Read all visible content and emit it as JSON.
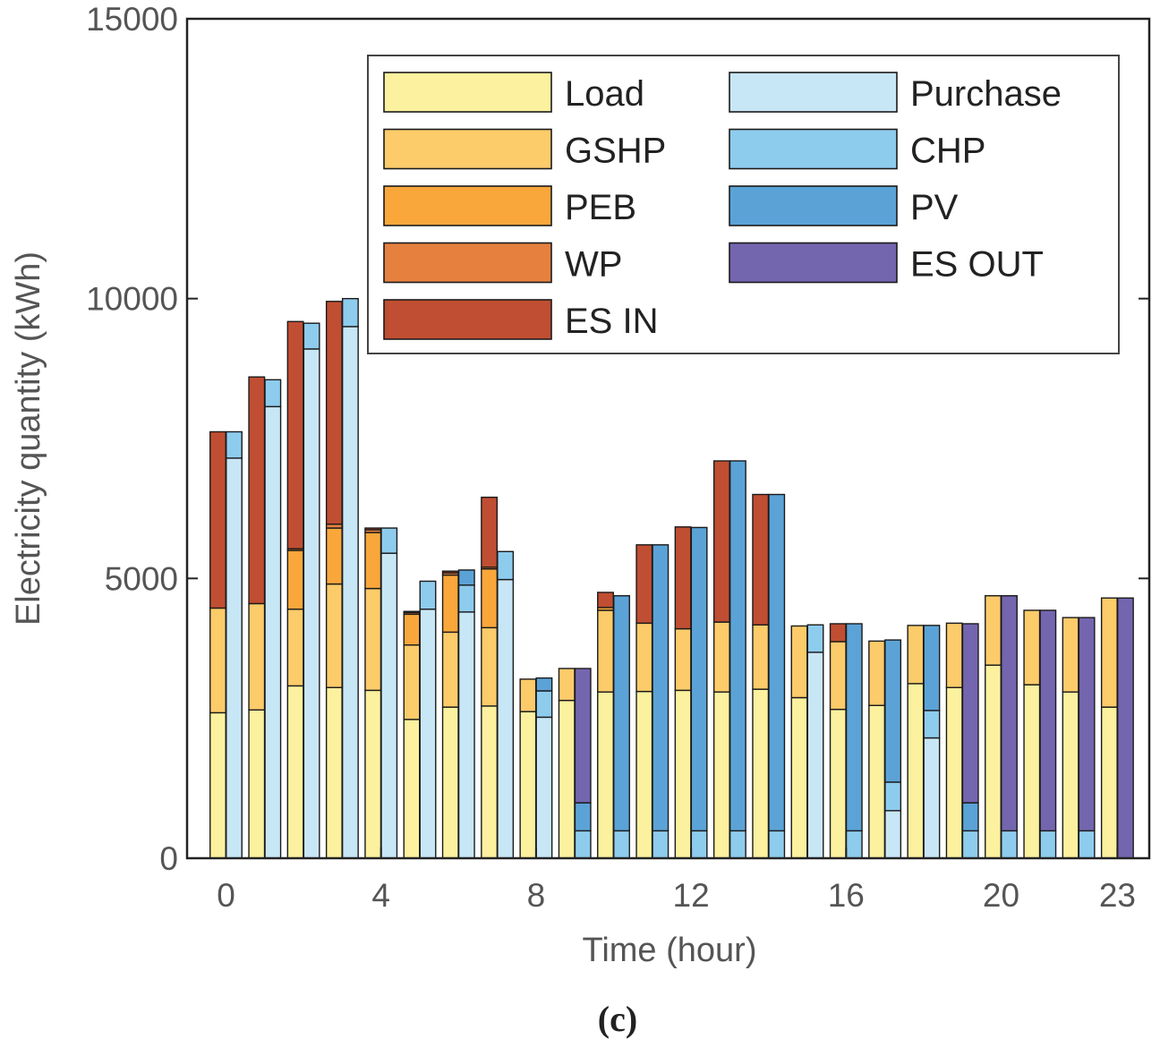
{
  "chart_data": {
    "type": "bar",
    "subtype": "stacked-grouped",
    "caption": "(c)",
    "xlabel": "Time (hour)",
    "ylabel": "Electricity quantity (kWh)",
    "ylim": [
      0,
      15000
    ],
    "yticks": [
      0,
      5000,
      10000,
      15000
    ],
    "xticks": [
      0,
      4,
      8,
      12,
      16,
      20,
      23
    ],
    "hours": [
      0,
      1,
      2,
      3,
      4,
      5,
      6,
      7,
      8,
      9,
      10,
      11,
      12,
      13,
      14,
      15,
      16,
      17,
      18,
      19,
      20,
      21,
      22,
      23
    ],
    "legend_position": "top-right",
    "demand_series": [
      {
        "name": "Load",
        "color": "#FBF19E",
        "values": [
          2600,
          2650,
          3080,
          3050,
          3000,
          2480,
          2700,
          2720,
          2620,
          2820,
          2970,
          2980,
          3000,
          2970,
          3020,
          2870,
          2660,
          2730,
          3120,
          3050,
          3450,
          3100,
          2970,
          2700
        ]
      },
      {
        "name": "GSHP",
        "color": "#FCCB6A",
        "values": [
          1870,
          1900,
          1370,
          1850,
          1820,
          1330,
          1340,
          1400,
          580,
          570,
          1460,
          1220,
          1100,
          1250,
          1150,
          1280,
          1210,
          1150,
          1040,
          1150,
          1240,
          1330,
          1330,
          1950
        ]
      },
      {
        "name": "PEB",
        "color": "#F9A73B",
        "values": [
          0,
          0,
          1050,
          1000,
          1000,
          550,
          1020,
          1050,
          0,
          0,
          50,
          0,
          0,
          0,
          0,
          0,
          0,
          0,
          0,
          0,
          0,
          0,
          0,
          0
        ]
      },
      {
        "name": "WP",
        "color": "#E5803F",
        "values": [
          0,
          0,
          30,
          70,
          50,
          30,
          40,
          30,
          0,
          0,
          0,
          0,
          0,
          0,
          0,
          0,
          0,
          0,
          0,
          0,
          0,
          0,
          0,
          0
        ]
      },
      {
        "name": "ES IN",
        "color": "#C04E32",
        "values": [
          3150,
          4050,
          4060,
          3980,
          30,
          20,
          30,
          1250,
          0,
          0,
          270,
          1400,
          1820,
          2880,
          2330,
          0,
          320,
          0,
          0,
          0,
          0,
          0,
          0,
          0
        ]
      }
    ],
    "supply_series": [
      {
        "name": "Purchase",
        "color": "#C8E7F6",
        "values": [
          7150,
          8070,
          9100,
          9500,
          5450,
          4450,
          4400,
          4980,
          2520,
          0,
          0,
          0,
          0,
          0,
          0,
          3680,
          0,
          850,
          2150,
          0,
          0,
          0,
          0,
          0
        ]
      },
      {
        "name": "CHP",
        "color": "#8ECCEE",
        "values": [
          470,
          480,
          460,
          500,
          450,
          500,
          480,
          500,
          470,
          490,
          490,
          490,
          490,
          490,
          490,
          490,
          490,
          510,
          490,
          490,
          490,
          490,
          490,
          0
        ]
      },
      {
        "name": "PV",
        "color": "#5BA3D7",
        "values": [
          0,
          0,
          0,
          0,
          0,
          0,
          270,
          0,
          230,
          500,
          4200,
          5110,
          5420,
          6610,
          6010,
          0,
          3700,
          2540,
          1520,
          500,
          0,
          0,
          0,
          0
        ]
      },
      {
        "name": "ES OUT",
        "color": "#7465AF",
        "values": [
          0,
          0,
          0,
          0,
          0,
          0,
          0,
          0,
          0,
          2400,
          0,
          0,
          0,
          0,
          0,
          0,
          0,
          0,
          0,
          3200,
          4200,
          3940,
          3810,
          4650
        ]
      }
    ],
    "legend_columns": [
      [
        "Load",
        "GSHP",
        "PEB",
        "WP",
        "ES IN"
      ],
      [
        "Purchase",
        "CHP",
        "PV",
        "ES OUT"
      ]
    ]
  }
}
